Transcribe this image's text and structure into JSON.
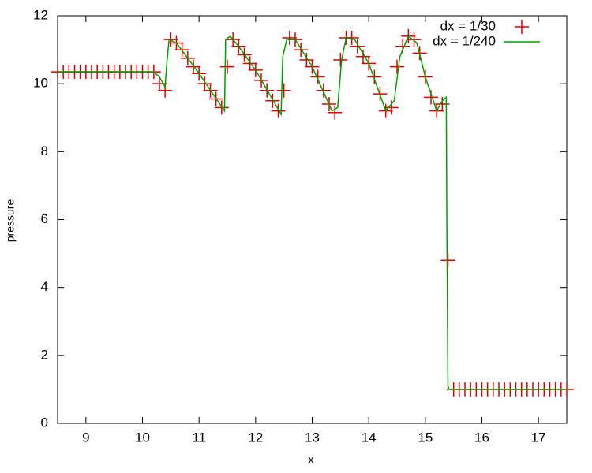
{
  "chart_data": {
    "type": "line",
    "xlabel": "x",
    "ylabel": "pressure",
    "xlim": [
      8.5,
      17.5
    ],
    "xticks": [
      9,
      10,
      11,
      12,
      13,
      14,
      15,
      16,
      17
    ],
    "ylim": [
      0,
      12
    ],
    "yticks": [
      0,
      2,
      4,
      6,
      8,
      10,
      12
    ],
    "grid": false,
    "legend": "top right",
    "series": [
      {
        "name": "dx = 1/30",
        "color": "#e00000",
        "marker": "plus",
        "x": [
          8.5,
          8.6,
          8.7,
          8.8,
          8.9,
          9,
          9.1,
          9.2,
          9.3,
          9.4,
          9.5,
          9.6,
          9.7,
          9.8,
          9.9,
          10,
          10.1,
          10.2,
          10.3,
          10.4,
          10.5,
          10.6,
          10.7,
          10.8,
          10.9,
          11,
          11.1,
          11.2,
          11.3,
          11.4,
          11.5,
          11.6,
          11.7,
          11.8,
          11.9,
          12,
          12.1,
          12.2,
          12.3,
          12.4,
          12.5,
          12.6,
          12.7,
          12.8,
          12.9,
          13,
          13.1,
          13.2,
          13.3,
          13.4,
          13.5,
          13.6,
          13.7,
          13.8,
          13.9,
          14,
          14.1,
          14.2,
          14.3,
          14.4,
          14.5,
          14.6,
          14.7,
          14.8,
          14.9,
          15,
          15.1,
          15.2,
          15.3,
          15.4,
          15.5,
          15.6,
          15.7,
          15.8,
          15.9,
          16,
          16.1,
          16.2,
          16.3,
          16.4,
          16.5,
          16.6,
          16.7,
          16.8,
          16.9,
          17,
          17.1,
          17.2,
          17.3,
          17.4,
          17.5
        ],
        "values": [
          10.35,
          10.35,
          10.35,
          10.35,
          10.35,
          10.35,
          10.35,
          10.35,
          10.35,
          10.35,
          10.35,
          10.35,
          10.35,
          10.35,
          10.35,
          10.35,
          10.35,
          10.35,
          10.0,
          9.8,
          11.3,
          11.2,
          11.0,
          10.75,
          10.5,
          10.3,
          10.0,
          9.8,
          9.55,
          9.3,
          10.5,
          11.3,
          11.1,
          10.85,
          10.6,
          10.4,
          10.1,
          9.8,
          9.5,
          9.2,
          9.8,
          11.35,
          11.3,
          11.0,
          10.7,
          10.5,
          10.2,
          9.8,
          9.4,
          9.15,
          10.7,
          11.35,
          11.35,
          11.1,
          10.8,
          10.6,
          10.2,
          9.7,
          9.2,
          9.3,
          10.5,
          11.1,
          11.4,
          11.3,
          10.9,
          10.2,
          9.6,
          9.2,
          9.4,
          4.8,
          1.0,
          1.0,
          1.0,
          1.0,
          1.0,
          1.0,
          1.0,
          1.0,
          1.0,
          1.0,
          1.0,
          1.0,
          1.0,
          1.0,
          1.0,
          1.0,
          1.0,
          1.0,
          1.0,
          1.0,
          1.0
        ]
      },
      {
        "name": "dx = 1/240",
        "color": "#00a000",
        "marker": "line",
        "x": [
          8.5,
          10.2,
          10.3,
          10.4,
          10.43,
          10.47,
          10.6,
          11.0,
          11.45,
          11.47,
          11.55,
          11.7,
          12.0,
          12.45,
          12.48,
          12.55,
          12.7,
          13.0,
          13.35,
          13.45,
          13.52,
          13.6,
          13.75,
          14.0,
          14.3,
          14.45,
          14.55,
          14.7,
          14.85,
          15.0,
          15.2,
          15.3,
          15.37,
          15.38,
          15.4,
          15.42,
          17.5
        ],
        "values": [
          10.35,
          10.35,
          10.2,
          9.9,
          10.6,
          11.3,
          11.2,
          10.3,
          9.2,
          11.3,
          11.4,
          11.1,
          10.4,
          9.1,
          10.8,
          11.3,
          11.3,
          10.5,
          9.2,
          9.3,
          10.7,
          11.35,
          11.3,
          10.6,
          9.2,
          9.5,
          10.8,
          11.4,
          11.2,
          10.2,
          9.2,
          9.5,
          9.6,
          6,
          1.1,
          1.0,
          1.0
        ]
      }
    ]
  }
}
